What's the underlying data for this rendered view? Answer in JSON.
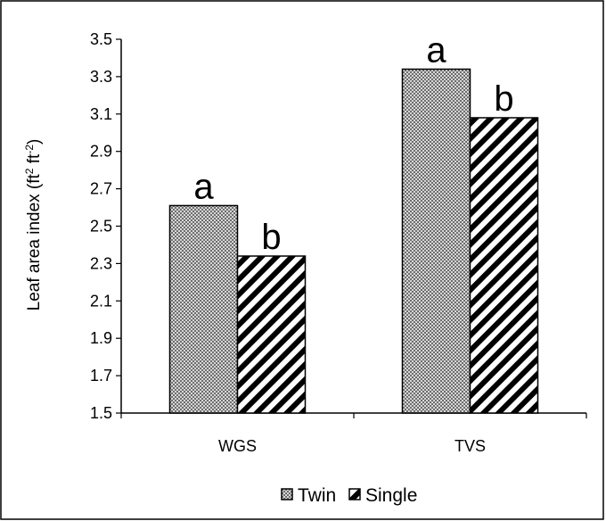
{
  "chart_data": {
    "type": "bar",
    "categories": [
      "WGS",
      "TVS"
    ],
    "series": [
      {
        "name": "Twin",
        "values": [
          2.61,
          3.34
        ],
        "labels": [
          "a",
          "a"
        ],
        "pattern": "checker"
      },
      {
        "name": "Single",
        "values": [
          2.34,
          3.08
        ],
        "labels": [
          "b",
          "b"
        ],
        "pattern": "diagonal-stripes"
      }
    ],
    "ylabel_main": "Leaf area index (ft",
    "ylabel_sup1": "2",
    "ylabel_mid": " ft",
    "ylabel_sup2": "-2",
    "ylabel_end": ")",
    "ylim": [
      1.5,
      3.5
    ],
    "yticks": [
      "1.5",
      "1.7",
      "1.9",
      "2.1",
      "2.3",
      "2.5",
      "2.7",
      "2.9",
      "3.1",
      "3.3",
      "3.5"
    ],
    "grid": false,
    "legend_position": "bottom"
  }
}
